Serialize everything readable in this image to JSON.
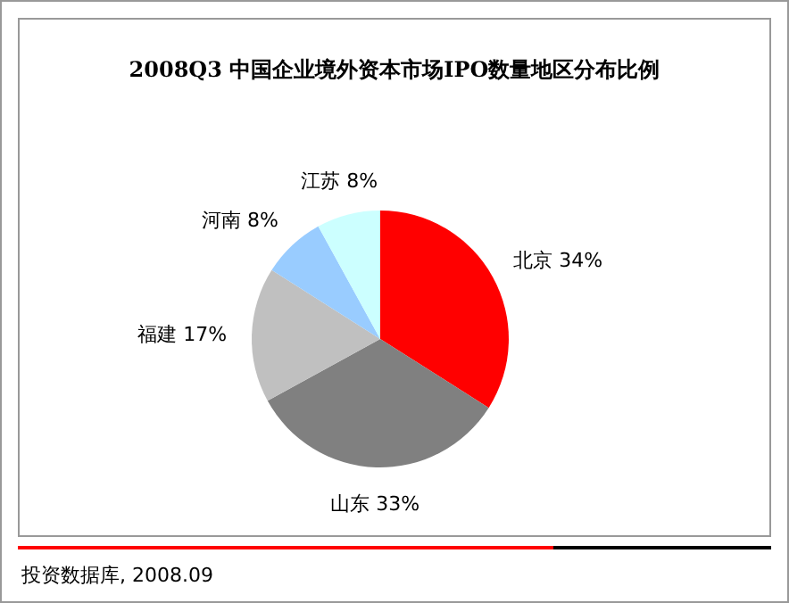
{
  "chart_data": {
    "type": "pie",
    "title": "2008Q3 中国企业境外资本市场IPO数量地区分布比例",
    "categories": [
      "北京",
      "山东",
      "福建",
      "河南",
      "江苏"
    ],
    "values": [
      34,
      33,
      17,
      8,
      8
    ],
    "colors": [
      "#ff0000",
      "#808080",
      "#c0c0c0",
      "#99ccff",
      "#ccffff"
    ],
    "value_labels": [
      "34%",
      "33%",
      "17%",
      "8%",
      "8%"
    ],
    "annotations": [
      "投资数据库, 2008.09"
    ]
  }
}
